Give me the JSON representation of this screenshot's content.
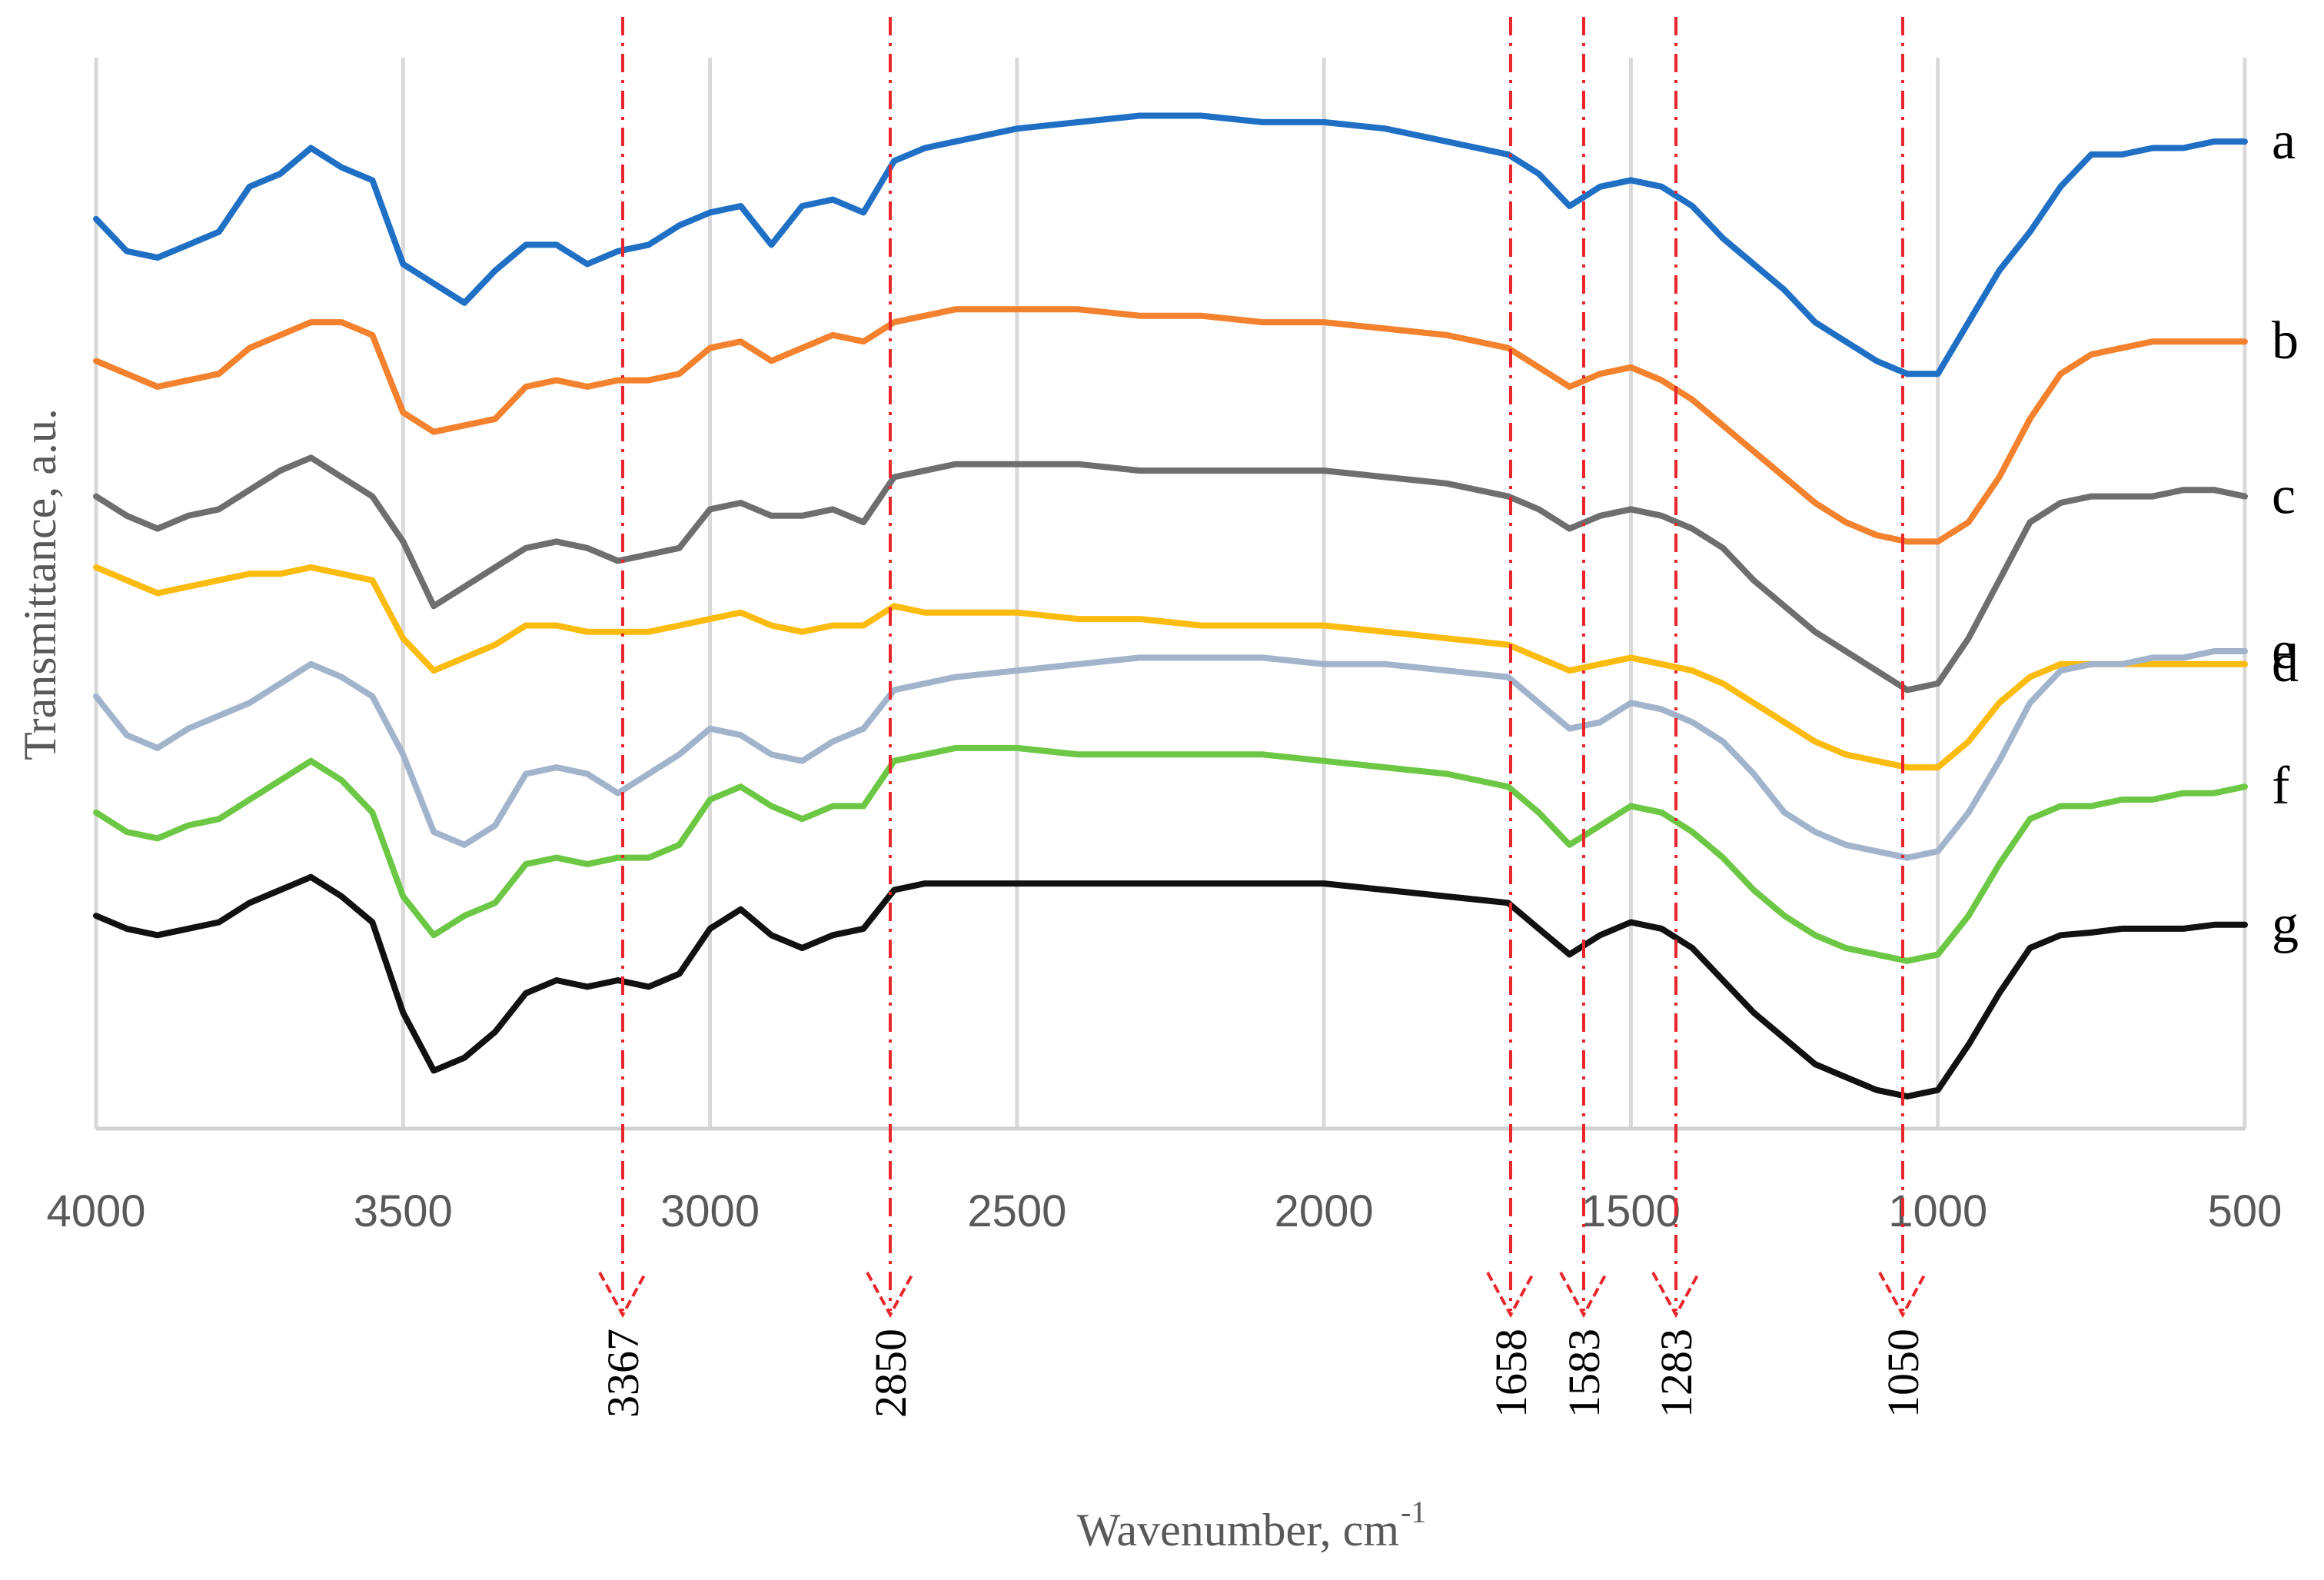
{
  "chart_data": {
    "type": "line",
    "title": "",
    "xlabel": "Wavenumber, cm-1",
    "xlabel_main": "Wavenumber, cm",
    "xlabel_sup": "-1",
    "ylabel": "Transmittance, a.u.",
    "xlim": [
      4000,
      500
    ],
    "x_reversed": true,
    "x_ticks": [
      4000,
      3500,
      3000,
      2500,
      2000,
      1500,
      1000,
      500
    ],
    "x_tick_labels": [
      "4000",
      "3500",
      "3000",
      "2500",
      "2000",
      "1500",
      "1000",
      "500"
    ],
    "grid": true,
    "y_ticks_shown": false,
    "legend": "labels at right end of each curve",
    "markers": [
      {
        "label": "3367"
      },
      {
        "label": "2850"
      },
      {
        "label": "1658"
      },
      {
        "label": "1583"
      },
      {
        "label": "1283"
      },
      {
        "label": "1050"
      }
    ],
    "x": [
      4000,
      3950,
      3900,
      3850,
      3800,
      3750,
      3700,
      3650,
      3600,
      3550,
      3500,
      3450,
      3400,
      3350,
      3300,
      3250,
      3200,
      3150,
      3100,
      3050,
      3000,
      2950,
      2900,
      2850,
      2800,
      2750,
      2700,
      2650,
      2600,
      2500,
      2400,
      2300,
      2200,
      2100,
      2000,
      1900,
      1800,
      1700,
      1650,
      1600,
      1550,
      1500,
      1450,
      1400,
      1350,
      1300,
      1250,
      1200,
      1150,
      1100,
      1050,
      1000,
      950,
      900,
      850,
      800,
      750,
      700,
      650,
      600,
      550,
      500
    ],
    "series": [
      {
        "name": "a",
        "color": "#1f6fc5",
        "values": [
          9.25,
          9.0,
          8.95,
          9.05,
          9.15,
          9.5,
          9.6,
          9.8,
          9.65,
          9.55,
          8.9,
          8.75,
          8.6,
          8.85,
          9.05,
          9.05,
          8.9,
          9.0,
          9.05,
          9.2,
          9.3,
          9.35,
          9.05,
          9.35,
          9.4,
          9.3,
          9.7,
          9.8,
          9.85,
          9.95,
          10.0,
          10.05,
          10.05,
          10.0,
          10.0,
          9.95,
          9.85,
          9.75,
          9.6,
          9.35,
          9.5,
          9.55,
          9.5,
          9.35,
          9.1,
          8.9,
          8.7,
          8.45,
          8.3,
          8.15,
          8.05,
          8.05,
          8.45,
          8.85,
          9.15,
          9.5,
          9.75,
          9.75,
          9.8,
          9.8,
          9.85,
          9.85
        ]
      },
      {
        "name": "b",
        "color": "#f4812d",
        "values": [
          8.15,
          8.05,
          7.95,
          8.0,
          8.05,
          8.25,
          8.35,
          8.45,
          8.45,
          8.35,
          7.75,
          7.6,
          7.65,
          7.7,
          7.95,
          8.0,
          7.95,
          8.0,
          8.0,
          8.05,
          8.25,
          8.3,
          8.15,
          8.25,
          8.35,
          8.3,
          8.45,
          8.5,
          8.55,
          8.55,
          8.55,
          8.5,
          8.5,
          8.45,
          8.45,
          8.4,
          8.35,
          8.25,
          8.1,
          7.95,
          8.05,
          8.1,
          8.0,
          7.85,
          7.65,
          7.45,
          7.25,
          7.05,
          6.9,
          6.8,
          6.75,
          6.75,
          6.9,
          7.25,
          7.7,
          8.05,
          8.2,
          8.25,
          8.3,
          8.3,
          8.3,
          8.3
        ]
      },
      {
        "name": "c",
        "color": "#6e6e6e",
        "values": [
          7.1,
          6.95,
          6.85,
          6.95,
          7.0,
          7.15,
          7.3,
          7.4,
          7.25,
          7.1,
          6.75,
          6.25,
          6.4,
          6.55,
          6.7,
          6.75,
          6.7,
          6.6,
          6.65,
          6.7,
          7.0,
          7.05,
          6.95,
          6.95,
          7.0,
          6.9,
          7.25,
          7.3,
          7.35,
          7.35,
          7.35,
          7.3,
          7.3,
          7.3,
          7.3,
          7.25,
          7.2,
          7.1,
          7.0,
          6.85,
          6.95,
          7.0,
          6.95,
          6.85,
          6.7,
          6.45,
          6.25,
          6.05,
          5.9,
          5.75,
          5.6,
          5.65,
          6.0,
          6.45,
          6.9,
          7.05,
          7.1,
          7.1,
          7.1,
          7.15,
          7.15,
          7.1
        ]
      },
      {
        "name": "d",
        "color": "#fbbb0f",
        "values": [
          6.55,
          6.45,
          6.35,
          6.4,
          6.45,
          6.5,
          6.5,
          6.55,
          6.5,
          6.45,
          6.0,
          5.75,
          5.85,
          5.95,
          6.1,
          6.1,
          6.05,
          6.05,
          6.05,
          6.1,
          6.15,
          6.2,
          6.1,
          6.05,
          6.1,
          6.1,
          6.25,
          6.2,
          6.2,
          6.2,
          6.15,
          6.15,
          6.1,
          6.1,
          6.1,
          6.05,
          6.0,
          5.95,
          5.85,
          5.75,
          5.8,
          5.85,
          5.8,
          5.75,
          5.65,
          5.5,
          5.35,
          5.2,
          5.1,
          5.05,
          5.0,
          5.0,
          5.2,
          5.5,
          5.7,
          5.8,
          5.8,
          5.8,
          5.8,
          5.8,
          5.8,
          5.8
        ]
      },
      {
        "name": "e",
        "color": "#a2b4cc",
        "values": [
          5.55,
          5.25,
          5.15,
          5.3,
          5.4,
          5.5,
          5.65,
          5.8,
          5.7,
          5.55,
          5.1,
          4.5,
          4.4,
          4.55,
          4.95,
          5.0,
          4.95,
          4.8,
          4.95,
          5.1,
          5.3,
          5.25,
          5.1,
          5.05,
          5.2,
          5.3,
          5.6,
          5.65,
          5.7,
          5.75,
          5.8,
          5.85,
          5.85,
          5.85,
          5.8,
          5.8,
          5.75,
          5.7,
          5.5,
          5.3,
          5.35,
          5.5,
          5.45,
          5.35,
          5.2,
          4.95,
          4.65,
          4.5,
          4.4,
          4.35,
          4.3,
          4.35,
          4.65,
          5.05,
          5.5,
          5.75,
          5.8,
          5.8,
          5.85,
          5.85,
          5.9,
          5.9
        ]
      },
      {
        "name": "f",
        "color": "#6cc844",
        "values": [
          4.65,
          4.5,
          4.45,
          4.55,
          4.6,
          4.75,
          4.9,
          5.05,
          4.9,
          4.65,
          4.0,
          3.7,
          3.85,
          3.95,
          4.25,
          4.3,
          4.25,
          4.3,
          4.3,
          4.4,
          4.75,
          4.85,
          4.7,
          4.6,
          4.7,
          4.7,
          5.05,
          5.1,
          5.15,
          5.15,
          5.1,
          5.1,
          5.1,
          5.1,
          5.05,
          5.0,
          4.95,
          4.85,
          4.65,
          4.4,
          4.55,
          4.7,
          4.65,
          4.5,
          4.3,
          4.05,
          3.85,
          3.7,
          3.6,
          3.55,
          3.5,
          3.55,
          3.85,
          4.25,
          4.6,
          4.7,
          4.7,
          4.75,
          4.75,
          4.8,
          4.8,
          4.85
        ]
      },
      {
        "name": "g",
        "color": "#111111",
        "values": [
          3.85,
          3.75,
          3.7,
          3.75,
          3.8,
          3.95,
          4.05,
          4.15,
          4.0,
          3.8,
          3.1,
          2.65,
          2.75,
          2.95,
          3.25,
          3.35,
          3.3,
          3.35,
          3.3,
          3.4,
          3.75,
          3.9,
          3.7,
          3.6,
          3.7,
          3.75,
          4.05,
          4.1,
          4.1,
          4.1,
          4.1,
          4.1,
          4.1,
          4.1,
          4.1,
          4.05,
          4.0,
          3.95,
          3.75,
          3.55,
          3.7,
          3.8,
          3.75,
          3.6,
          3.35,
          3.1,
          2.9,
          2.7,
          2.6,
          2.5,
          2.45,
          2.5,
          2.85,
          3.25,
          3.6,
          3.7,
          3.72,
          3.75,
          3.75,
          3.75,
          3.78,
          3.78
        ]
      }
    ],
    "ylim": [
      2.2,
      10.5
    ]
  }
}
